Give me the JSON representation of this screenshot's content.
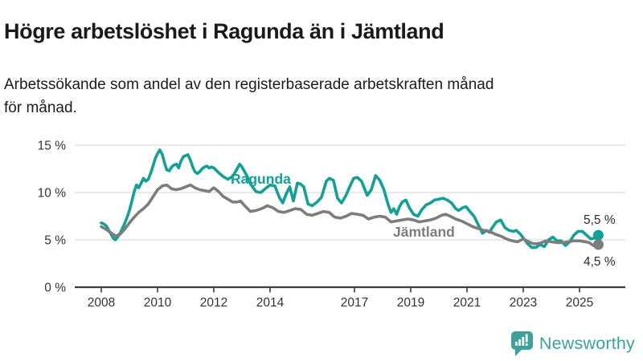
{
  "header": {
    "title": "Högre arbetslöshet i Ragunda än i Jämtland",
    "subtitle_line1": "Arbetssökande som andel av den registerbaserade arbetskraften månad",
    "subtitle_line2": "för månad."
  },
  "branding": {
    "wordmark": "Newsworthy",
    "icon": "newsworthy-barchart-bubble-icon",
    "color": "#3aa49b"
  },
  "colors": {
    "ragunda": "#12a195",
    "jamtland": "#7d7d7d",
    "axis": "#3c3c3c",
    "gridline": "#dedede",
    "tick_text": "#333333",
    "end_label_text": "#2b2b2b",
    "background": "#ffffff"
  },
  "chart_data": {
    "type": "line",
    "title": "",
    "xlabel": "",
    "ylabel": "",
    "grid": true,
    "legend_position": "inline-labels",
    "xlim": [
      2007.9,
      2025.95
    ],
    "ylim": [
      0,
      16
    ],
    "x_ticks": [
      2008,
      2010,
      2012,
      2014,
      2017,
      2019,
      2021,
      2023,
      2025
    ],
    "y_ticks": [
      {
        "value": 15,
        "label": "15 %"
      },
      {
        "value": 10,
        "label": "10 %"
      },
      {
        "value": 5,
        "label": "5 %"
      },
      {
        "value": 0,
        "label": "0 %"
      }
    ],
    "series": [
      {
        "name": "Ragunda",
        "color": "#12a195",
        "end_label": "5,5 %",
        "end_value": 5.5,
        "points": [
          [
            2008.0,
            6.8
          ],
          [
            2008.08,
            6.7
          ],
          [
            2008.17,
            6.5
          ],
          [
            2008.25,
            6.1
          ],
          [
            2008.33,
            5.7
          ],
          [
            2008.42,
            5.2
          ],
          [
            2008.5,
            5.0
          ],
          [
            2008.58,
            5.3
          ],
          [
            2008.67,
            5.7
          ],
          [
            2008.75,
            6.2
          ],
          [
            2008.83,
            6.7
          ],
          [
            2008.92,
            7.4
          ],
          [
            2009.0,
            8.1
          ],
          [
            2009.08,
            9.0
          ],
          [
            2009.17,
            10.1
          ],
          [
            2009.25,
            10.8
          ],
          [
            2009.33,
            10.5
          ],
          [
            2009.42,
            11.0
          ],
          [
            2009.5,
            11.5
          ],
          [
            2009.58,
            11.2
          ],
          [
            2009.67,
            11.4
          ],
          [
            2009.75,
            12.0
          ],
          [
            2009.83,
            12.7
          ],
          [
            2009.92,
            13.6
          ],
          [
            2010.0,
            14.1
          ],
          [
            2010.08,
            14.5
          ],
          [
            2010.17,
            14.0
          ],
          [
            2010.25,
            13.1
          ],
          [
            2010.33,
            12.4
          ],
          [
            2010.42,
            12.3
          ],
          [
            2010.5,
            12.7
          ],
          [
            2010.58,
            12.9
          ],
          [
            2010.67,
            13.0
          ],
          [
            2010.75,
            12.6
          ],
          [
            2010.83,
            13.3
          ],
          [
            2010.92,
            13.8
          ],
          [
            2011.0,
            13.9
          ],
          [
            2011.08,
            14.0
          ],
          [
            2011.17,
            13.4
          ],
          [
            2011.25,
            12.7
          ],
          [
            2011.33,
            12.2
          ],
          [
            2011.42,
            12.0
          ],
          [
            2011.5,
            12.2
          ],
          [
            2011.58,
            12.5
          ],
          [
            2011.67,
            12.7
          ],
          [
            2011.75,
            12.8
          ],
          [
            2011.83,
            12.6
          ],
          [
            2011.92,
            12.7
          ],
          [
            2012.0,
            12.6
          ],
          [
            2012.17,
            12.1
          ],
          [
            2012.33,
            11.7
          ],
          [
            2012.5,
            11.4
          ],
          [
            2012.67,
            11.7
          ],
          [
            2012.83,
            12.5
          ],
          [
            2012.92,
            13.0
          ],
          [
            2013.0,
            12.7
          ],
          [
            2013.17,
            11.8
          ],
          [
            2013.33,
            10.8
          ],
          [
            2013.5,
            10.1
          ],
          [
            2013.67,
            10.0
          ],
          [
            2013.83,
            10.4
          ],
          [
            2014.0,
            10.8
          ],
          [
            2014.17,
            10.7
          ],
          [
            2014.33,
            9.5
          ],
          [
            2014.45,
            8.9
          ],
          [
            2014.58,
            9.9
          ],
          [
            2014.7,
            10.6
          ],
          [
            2014.83,
            9.1
          ],
          [
            2014.97,
            11.0
          ],
          [
            2015.08,
            10.9
          ],
          [
            2015.2,
            10.6
          ],
          [
            2015.35,
            8.8
          ],
          [
            2015.5,
            8.6
          ],
          [
            2015.67,
            9.0
          ],
          [
            2015.83,
            9.5
          ],
          [
            2016.0,
            11.2
          ],
          [
            2016.11,
            11.5
          ],
          [
            2016.25,
            11.3
          ],
          [
            2016.4,
            9.4
          ],
          [
            2016.54,
            8.9
          ],
          [
            2016.7,
            9.7
          ],
          [
            2016.83,
            10.6
          ],
          [
            2016.97,
            11.5
          ],
          [
            2017.1,
            11.6
          ],
          [
            2017.25,
            11.2
          ],
          [
            2017.45,
            9.7
          ],
          [
            2017.6,
            10.3
          ],
          [
            2017.75,
            11.8
          ],
          [
            2017.9,
            11.3
          ],
          [
            2018.05,
            10.3
          ],
          [
            2018.2,
            8.7
          ],
          [
            2018.3,
            7.9
          ],
          [
            2018.4,
            8.3
          ],
          [
            2018.5,
            7.7
          ],
          [
            2018.6,
            8.5
          ],
          [
            2018.7,
            9.0
          ],
          [
            2018.83,
            9.2
          ],
          [
            2018.95,
            8.4
          ],
          [
            2019.1,
            7.7
          ],
          [
            2019.25,
            7.5
          ],
          [
            2019.4,
            8.2
          ],
          [
            2019.55,
            8.7
          ],
          [
            2019.7,
            8.9
          ],
          [
            2019.85,
            9.2
          ],
          [
            2020.0,
            9.3
          ],
          [
            2020.15,
            9.4
          ],
          [
            2020.3,
            9.2
          ],
          [
            2020.45,
            8.9
          ],
          [
            2020.6,
            8.3
          ],
          [
            2020.7,
            8.1
          ],
          [
            2020.85,
            8.4
          ],
          [
            2020.97,
            8.5
          ],
          [
            2021.1,
            8.0
          ],
          [
            2021.25,
            7.5
          ],
          [
            2021.4,
            6.6
          ],
          [
            2021.55,
            5.7
          ],
          [
            2021.7,
            6.0
          ],
          [
            2021.8,
            5.8
          ],
          [
            2021.9,
            6.3
          ],
          [
            2022.05,
            6.9
          ],
          [
            2022.2,
            7.1
          ],
          [
            2022.35,
            6.3
          ],
          [
            2022.5,
            6.0
          ],
          [
            2022.65,
            5.9
          ],
          [
            2022.75,
            6.0
          ],
          [
            2022.9,
            5.6
          ],
          [
            2023.0,
            5.2
          ],
          [
            2023.15,
            4.6
          ],
          [
            2023.3,
            4.2
          ],
          [
            2023.45,
            4.2
          ],
          [
            2023.6,
            4.5
          ],
          [
            2023.75,
            4.3
          ],
          [
            2023.9,
            5.0
          ],
          [
            2024.05,
            5.3
          ],
          [
            2024.2,
            4.9
          ],
          [
            2024.35,
            4.9
          ],
          [
            2024.5,
            4.4
          ],
          [
            2024.65,
            4.8
          ],
          [
            2024.8,
            5.5
          ],
          [
            2024.95,
            5.9
          ],
          [
            2025.1,
            5.9
          ],
          [
            2025.25,
            5.5
          ],
          [
            2025.4,
            5.1
          ],
          [
            2025.55,
            5.2
          ],
          [
            2025.67,
            5.5
          ]
        ]
      },
      {
        "name": "Jämtland",
        "color": "#7d7d7d",
        "end_label": "4,5 %",
        "end_value": 4.5,
        "points": [
          [
            2008.0,
            6.4
          ],
          [
            2008.17,
            6.1
          ],
          [
            2008.33,
            5.8
          ],
          [
            2008.5,
            5.4
          ],
          [
            2008.67,
            5.6
          ],
          [
            2008.83,
            6.1
          ],
          [
            2009.0,
            6.8
          ],
          [
            2009.17,
            7.4
          ],
          [
            2009.33,
            7.9
          ],
          [
            2009.5,
            8.3
          ],
          [
            2009.67,
            8.8
          ],
          [
            2009.83,
            9.5
          ],
          [
            2010.0,
            10.3
          ],
          [
            2010.17,
            10.7
          ],
          [
            2010.33,
            10.8
          ],
          [
            2010.5,
            10.4
          ],
          [
            2010.67,
            10.3
          ],
          [
            2010.83,
            10.4
          ],
          [
            2011.0,
            10.6
          ],
          [
            2011.17,
            10.8
          ],
          [
            2011.33,
            10.5
          ],
          [
            2011.5,
            10.3
          ],
          [
            2011.67,
            10.2
          ],
          [
            2011.83,
            10.1
          ],
          [
            2012.0,
            10.5
          ],
          [
            2012.17,
            10.1
          ],
          [
            2012.33,
            9.6
          ],
          [
            2012.5,
            9.3
          ],
          [
            2012.67,
            9.0
          ],
          [
            2012.83,
            9.0
          ],
          [
            2012.95,
            9.1
          ],
          [
            2013.1,
            8.6
          ],
          [
            2013.3,
            8.0
          ],
          [
            2013.5,
            8.1
          ],
          [
            2013.7,
            8.3
          ],
          [
            2013.9,
            8.6
          ],
          [
            2014.1,
            8.4
          ],
          [
            2014.3,
            8.0
          ],
          [
            2014.5,
            7.9
          ],
          [
            2014.7,
            8.1
          ],
          [
            2014.9,
            8.3
          ],
          [
            2015.1,
            8.2
          ],
          [
            2015.3,
            7.7
          ],
          [
            2015.5,
            7.6
          ],
          [
            2015.7,
            7.8
          ],
          [
            2015.9,
            8.0
          ],
          [
            2016.1,
            7.9
          ],
          [
            2016.3,
            7.4
          ],
          [
            2016.5,
            7.3
          ],
          [
            2016.7,
            7.5
          ],
          [
            2016.9,
            7.8
          ],
          [
            2017.1,
            7.7
          ],
          [
            2017.3,
            7.6
          ],
          [
            2017.5,
            7.2
          ],
          [
            2017.7,
            7.4
          ],
          [
            2017.9,
            7.5
          ],
          [
            2018.1,
            7.4
          ],
          [
            2018.3,
            6.9
          ],
          [
            2018.5,
            7.0
          ],
          [
            2018.7,
            7.1
          ],
          [
            2018.9,
            7.2
          ],
          [
            2019.1,
            7.1
          ],
          [
            2019.3,
            6.9
          ],
          [
            2019.5,
            7.0
          ],
          [
            2019.7,
            7.1
          ],
          [
            2019.9,
            7.3
          ],
          [
            2020.1,
            7.6
          ],
          [
            2020.25,
            7.7
          ],
          [
            2020.4,
            7.5
          ],
          [
            2020.6,
            7.2
          ],
          [
            2020.8,
            7.0
          ],
          [
            2021.0,
            6.7
          ],
          [
            2021.2,
            6.4
          ],
          [
            2021.4,
            6.2
          ],
          [
            2021.6,
            6.0
          ],
          [
            2021.8,
            5.9
          ],
          [
            2022.0,
            5.6
          ],
          [
            2022.2,
            5.4
          ],
          [
            2022.4,
            5.1
          ],
          [
            2022.6,
            4.9
          ],
          [
            2022.8,
            4.8
          ],
          [
            2023.0,
            5.1
          ],
          [
            2023.2,
            4.8
          ],
          [
            2023.35,
            4.6
          ],
          [
            2023.5,
            4.6
          ],
          [
            2023.65,
            4.7
          ],
          [
            2023.8,
            4.9
          ],
          [
            2024.0,
            4.8
          ],
          [
            2024.2,
            4.7
          ],
          [
            2024.4,
            4.7
          ],
          [
            2024.6,
            4.8
          ],
          [
            2024.8,
            4.9
          ],
          [
            2025.0,
            4.9
          ],
          [
            2025.2,
            4.8
          ],
          [
            2025.35,
            4.7
          ],
          [
            2025.5,
            4.4
          ],
          [
            2025.67,
            4.5
          ]
        ]
      }
    ]
  }
}
